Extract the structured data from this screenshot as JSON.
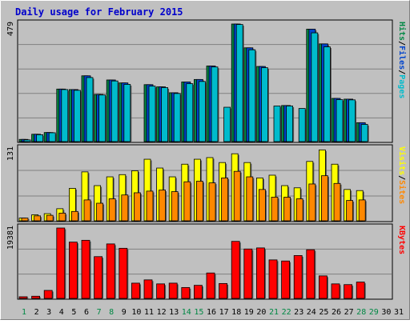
{
  "title": "Daily usage for February 2015",
  "colors": {
    "background": "#c0c0c0",
    "title": "#0000cc",
    "pages": "#00bbcc",
    "files": "#0044cc",
    "hits": "#008844",
    "visits": "#ffff00",
    "sites": "#ff8800",
    "kbytes": "#ff0000",
    "weekend_day": "#008844"
  },
  "chart_data": [
    {
      "type": "bar",
      "panel": "hits-files-pages",
      "max_label": "479",
      "ylim": [
        0,
        479
      ],
      "legend": [
        "Pages",
        "/",
        "Files",
        "/",
        "Hits"
      ],
      "categories": [
        "1",
        "2",
        "3",
        "4",
        "5",
        "6",
        "7",
        "8",
        "9",
        "10",
        "11",
        "12",
        "13",
        "14",
        "15",
        "16",
        "17",
        "18",
        "19",
        "20",
        "21",
        "22",
        "23",
        "24",
        "25",
        "26",
        "27",
        "28",
        "29",
        "30",
        "31"
      ],
      "series": [
        {
          "name": "Hits",
          "values": [
            9,
            30,
            37,
            214,
            212,
            268,
            192,
            251,
            239,
            0,
            232,
            223,
            199,
            243,
            253,
            308,
            0,
            479,
            382,
            306,
            0,
            147,
            0,
            458,
            398,
            176,
            173,
            77,
            0,
            0,
            0
          ]
        },
        {
          "name": "Files",
          "values": [
            9,
            30,
            37,
            214,
            212,
            268,
            192,
            251,
            239,
            0,
            232,
            223,
            199,
            243,
            253,
            308,
            0,
            479,
            382,
            306,
            0,
            147,
            0,
            458,
            398,
            176,
            173,
            77,
            0,
            0,
            0
          ]
        },
        {
          "name": "Pages",
          "values": [
            7,
            28,
            36,
            212,
            209,
            261,
            190,
            247,
            233,
            0,
            226,
            220,
            196,
            236,
            245,
            304,
            140,
            477,
            374,
            301,
            145,
            145,
            135,
            443,
            386,
            171,
            170,
            70,
            0,
            0,
            0
          ]
        }
      ]
    },
    {
      "type": "bar",
      "panel": "visits-sites",
      "max_label": "131",
      "ylim": [
        0,
        131
      ],
      "legend": [
        "Sites",
        "/",
        "Visits"
      ],
      "categories": [
        "1",
        "2",
        "3",
        "4",
        "5",
        "6",
        "7",
        "8",
        "9",
        "10",
        "11",
        "12",
        "13",
        "14",
        "15",
        "16",
        "17",
        "18",
        "19",
        "20",
        "21",
        "22",
        "23",
        "24",
        "25",
        "26",
        "27",
        "28",
        "29",
        "30",
        "31"
      ],
      "series": [
        {
          "name": "Visits",
          "values": [
            5,
            11,
            13,
            22,
            59,
            89,
            64,
            80,
            84,
            91,
            112,
            96,
            80,
            103,
            112,
            115,
            106,
            122,
            106,
            78,
            83,
            64,
            60,
            108,
            129,
            103,
            57,
            55,
            0,
            0,
            0
          ]
        },
        {
          "name": "Sites",
          "values": [
            5,
            9,
            10,
            14,
            17,
            38,
            32,
            40,
            47,
            51,
            54,
            56,
            53,
            71,
            72,
            69,
            78,
            90,
            80,
            57,
            43,
            43,
            40,
            67,
            82,
            68,
            37,
            38,
            0,
            0,
            0
          ]
        }
      ]
    },
    {
      "type": "bar",
      "panel": "kbytes",
      "max_label": "19381",
      "ylim": [
        0,
        19381
      ],
      "legend": [
        "KBytes"
      ],
      "categories": [
        "1",
        "2",
        "3",
        "4",
        "5",
        "6",
        "7",
        "8",
        "9",
        "10",
        "11",
        "12",
        "13",
        "14",
        "15",
        "16",
        "17",
        "18",
        "19",
        "20",
        "21",
        "22",
        "23",
        "24",
        "25",
        "26",
        "27",
        "28",
        "29",
        "30",
        "31"
      ],
      "series": [
        {
          "name": "KBytes",
          "values": [
            450,
            600,
            2200,
            19381,
            15500,
            16000,
            11500,
            15000,
            13800,
            4200,
            5100,
            4000,
            4200,
            3000,
            3600,
            7000,
            4100,
            15700,
            13600,
            13900,
            10600,
            10300,
            11800,
            13400,
            6200,
            4000,
            3800,
            4500,
            0,
            0,
            0
          ]
        }
      ]
    }
  ],
  "x_axis": {
    "days": [
      "1",
      "2",
      "3",
      "4",
      "5",
      "6",
      "7",
      "8",
      "9",
      "10",
      "11",
      "12",
      "13",
      "14",
      "15",
      "16",
      "17",
      "18",
      "19",
      "20",
      "21",
      "22",
      "23",
      "24",
      "25",
      "26",
      "27",
      "28",
      "29",
      "30",
      "31"
    ],
    "weekend_days": [
      "1",
      "7",
      "8",
      "14",
      "15",
      "21",
      "22",
      "28",
      "29"
    ]
  }
}
